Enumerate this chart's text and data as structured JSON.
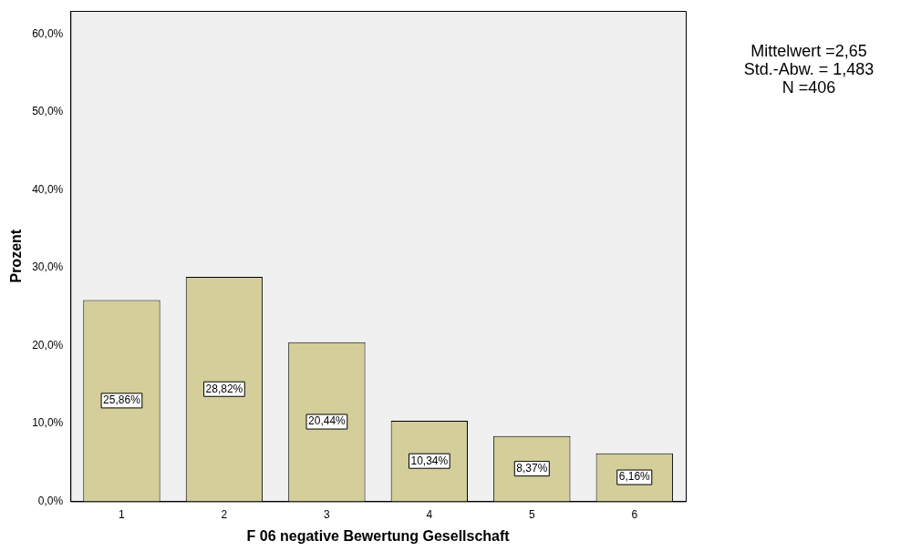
{
  "chart_data": {
    "type": "bar",
    "xlabel": "F 06 negative Bewertung Gesellschaft",
    "ylabel": "Prozent",
    "categories": [
      "1",
      "2",
      "3",
      "4",
      "5",
      "6"
    ],
    "values": [
      25.86,
      28.82,
      20.44,
      10.34,
      8.37,
      6.16
    ],
    "value_labels": [
      "25,86%",
      "28,82%",
      "20,44%",
      "10,34%",
      "8,37%",
      "6,16%"
    ],
    "color": "#d3ce9a",
    "ylim": [
      0,
      63
    ],
    "yticks": [
      {
        "value": 0,
        "label": "0,0%"
      },
      {
        "value": 10,
        "label": "10,0%"
      },
      {
        "value": 20,
        "label": "20,0%"
      },
      {
        "value": 30,
        "label": "30,0%"
      },
      {
        "value": 40,
        "label": "40,0%"
      },
      {
        "value": 50,
        "label": "50,0%"
      },
      {
        "value": 60,
        "label": "60,0%"
      }
    ],
    "grid": false,
    "legend": false,
    "annotations": [
      "Mittelwert =2,65",
      "Std.-Abw. = 1,483",
      "N =406"
    ]
  }
}
